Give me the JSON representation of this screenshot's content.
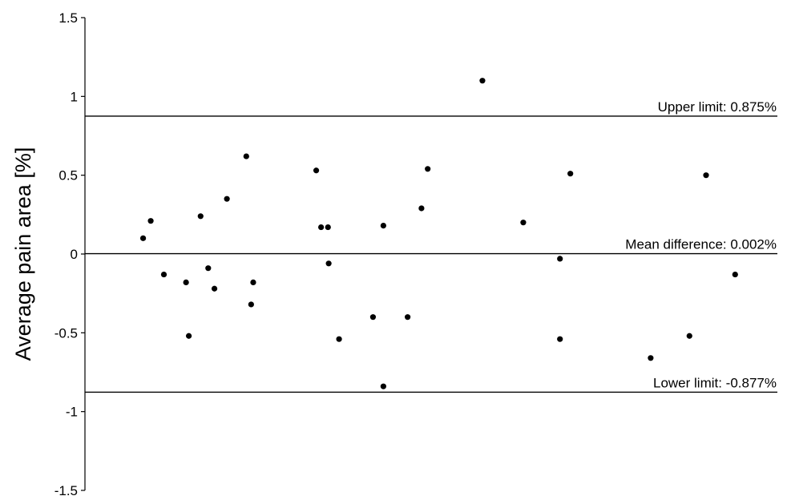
{
  "chart_data": {
    "type": "scatter",
    "title": "",
    "xlabel": "",
    "ylabel": "Average pain area [%]",
    "ylim": [
      -1.5,
      1.5
    ],
    "xlim": [
      0,
      10
    ],
    "y_ticks": [
      1.5,
      1,
      0.5,
      0,
      -0.5,
      -1,
      -1.5
    ],
    "y_tick_labels": [
      "1.5",
      "1",
      "0.5",
      "0",
      "-0.5",
      "-1",
      "-1.5"
    ],
    "grid": false,
    "reference_lines": [
      {
        "name": "upper",
        "y": 0.875,
        "label": "Upper limit: 0.875%"
      },
      {
        "name": "mean",
        "y": 0.002,
        "label": "Mean difference: 0.002%"
      },
      {
        "name": "lower",
        "y": -0.877,
        "label": "Lower limit: -0.877%"
      }
    ],
    "points": [
      {
        "x": 0.84,
        "y": 0.1
      },
      {
        "x": 0.95,
        "y": 0.21
      },
      {
        "x": 1.14,
        "y": -0.13
      },
      {
        "x": 1.46,
        "y": -0.18
      },
      {
        "x": 1.5,
        "y": -0.52
      },
      {
        "x": 1.67,
        "y": 0.24
      },
      {
        "x": 1.78,
        "y": -0.09
      },
      {
        "x": 1.87,
        "y": -0.22
      },
      {
        "x": 2.05,
        "y": 0.35
      },
      {
        "x": 2.33,
        "y": 0.62
      },
      {
        "x": 2.4,
        "y": -0.32
      },
      {
        "x": 2.43,
        "y": -0.18
      },
      {
        "x": 3.34,
        "y": 0.53
      },
      {
        "x": 3.41,
        "y": 0.17
      },
      {
        "x": 3.51,
        "y": 0.17
      },
      {
        "x": 3.52,
        "y": -0.06
      },
      {
        "x": 3.67,
        "y": -0.54
      },
      {
        "x": 4.16,
        "y": -0.4
      },
      {
        "x": 4.31,
        "y": 0.18
      },
      {
        "x": 4.31,
        "y": -0.84
      },
      {
        "x": 4.66,
        "y": -0.4
      },
      {
        "x": 4.86,
        "y": 0.29
      },
      {
        "x": 4.95,
        "y": 0.54
      },
      {
        "x": 5.74,
        "y": 1.1
      },
      {
        "x": 6.33,
        "y": 0.2
      },
      {
        "x": 6.86,
        "y": -0.54
      },
      {
        "x": 6.86,
        "y": -0.03
      },
      {
        "x": 7.01,
        "y": 0.51
      },
      {
        "x": 8.17,
        "y": -0.66
      },
      {
        "x": 8.73,
        "y": -0.52
      },
      {
        "x": 8.97,
        "y": 0.5
      },
      {
        "x": 9.39,
        "y": -0.13
      }
    ]
  }
}
